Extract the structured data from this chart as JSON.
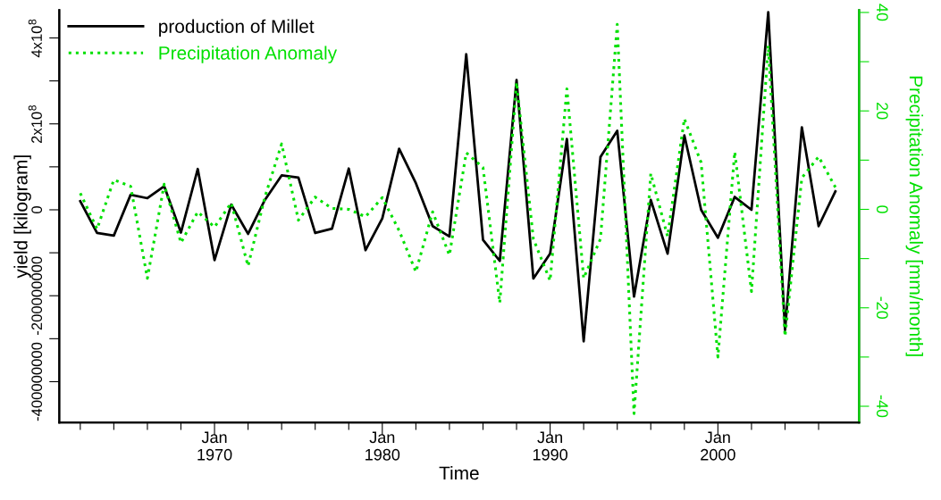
{
  "chart_data": {
    "type": "line",
    "xlabel": "Time",
    "ylabel": "yield [kilogram]",
    "y2label": "Precipitation Anomaly [mm/month]",
    "x": [
      "1962",
      "1963",
      "1964",
      "1965",
      "1966",
      "1967",
      "1968",
      "1969",
      "1970",
      "1971",
      "1972",
      "1973",
      "1974",
      "1975",
      "1976",
      "1977",
      "1978",
      "1979",
      "1980",
      "1981",
      "1982",
      "1983",
      "1984",
      "1985",
      "1986",
      "1987",
      "1988",
      "1989",
      "1990",
      "1991",
      "1992",
      "1993",
      "1994",
      "1995",
      "1996",
      "1997",
      "1998",
      "1999",
      "2000",
      "2001",
      "2002",
      "2003",
      "2004",
      "2005",
      "2006",
      "2007"
    ],
    "series": [
      {
        "name": "production of Millet",
        "color": "#000000",
        "line_style": "solid",
        "values": [
          20000000,
          -54000000,
          -60000000,
          35000000,
          27000000,
          55000000,
          -53000000,
          95000000,
          -117000000,
          12000000,
          -56000000,
          23000000,
          80000000,
          75000000,
          -54000000,
          -44000000,
          96000000,
          -94000000,
          -20000000,
          142000000,
          62000000,
          -38000000,
          -62000000,
          362000000,
          -70000000,
          -119000000,
          302000000,
          -160000000,
          -102000000,
          165000000,
          -306000000,
          123000000,
          184000000,
          -202000000,
          23000000,
          -102000000,
          173000000,
          0,
          -65000000,
          30000000,
          0,
          460000000,
          -280000000,
          192000000,
          -38000000,
          43000000
        ]
      },
      {
        "name": "Precipitation Anomaly",
        "color": "#00e000",
        "line_style": "dotted",
        "axis": "y2",
        "values": [
          3.3,
          -4,
          6,
          4.7,
          -14,
          5.1,
          -6.8,
          -0.5,
          -3.6,
          1.3,
          -11.5,
          2.5,
          13.3,
          -2.2,
          2.5,
          0.2,
          0,
          -1.5,
          2.4,
          -4.3,
          -12.7,
          -0.5,
          -9.3,
          11.5,
          8.5,
          -19,
          25.8,
          -6,
          -14.5,
          24.5,
          -14,
          -6,
          37.6,
          -41.5,
          7.3,
          -5.5,
          18.4,
          9.5,
          -30,
          11.7,
          -16.7,
          33.3,
          -25.8,
          6.4,
          10.7,
          4.5
        ]
      }
    ],
    "xlim": [
      "1960-10",
      "2008-06"
    ],
    "xticks": [
      {
        "value": "1962",
        "label": null
      },
      {
        "value": "1964",
        "label": null
      },
      {
        "value": "1966",
        "label": null
      },
      {
        "value": "1968",
        "label": null
      },
      {
        "value": "1970",
        "label": "Jan\n1970"
      },
      {
        "value": "1972",
        "label": null
      },
      {
        "value": "1974",
        "label": null
      },
      {
        "value": "1976",
        "label": null
      },
      {
        "value": "1978",
        "label": null
      },
      {
        "value": "1980",
        "label": "Jan\n1980"
      },
      {
        "value": "1982",
        "label": null
      },
      {
        "value": "1984",
        "label": null
      },
      {
        "value": "1986",
        "label": null
      },
      {
        "value": "1988",
        "label": null
      },
      {
        "value": "1990",
        "label": "Jan\n1990"
      },
      {
        "value": "1992",
        "label": null
      },
      {
        "value": "1994",
        "label": null
      },
      {
        "value": "1996",
        "label": null
      },
      {
        "value": "1998",
        "label": null
      },
      {
        "value": "2000",
        "label": "Jan\n2000"
      },
      {
        "value": "2002",
        "label": null
      },
      {
        "value": "2004",
        "label": null
      },
      {
        "value": "2006",
        "label": null
      }
    ],
    "ylim": [
      -495000000,
      465000000
    ],
    "yticks": [
      {
        "value": -400000000,
        "label": "-400000000"
      },
      {
        "value": -300000000,
        "label": null
      },
      {
        "value": -200000000,
        "label": "-200000000"
      },
      {
        "value": -100000000,
        "label": null
      },
      {
        "value": 0,
        "label": "0"
      },
      {
        "value": 100000000,
        "label": null
      },
      {
        "value": 200000000,
        "label": "2x10$^{8}$"
      },
      {
        "value": 300000000,
        "label": null
      },
      {
        "value": 400000000,
        "label": "4x10$^{8}$"
      }
    ],
    "y2lim": [
      -43.3,
      40.5
    ],
    "y2ticks": [
      -40,
      {
        "value": -30,
        "label": null
      },
      -20,
      {
        "value": -10,
        "label": null
      },
      0,
      {
        "value": 10,
        "label": null
      },
      20,
      {
        "value": 30,
        "label": null
      },
      40
    ],
    "legend": "top left",
    "grid": false
  }
}
